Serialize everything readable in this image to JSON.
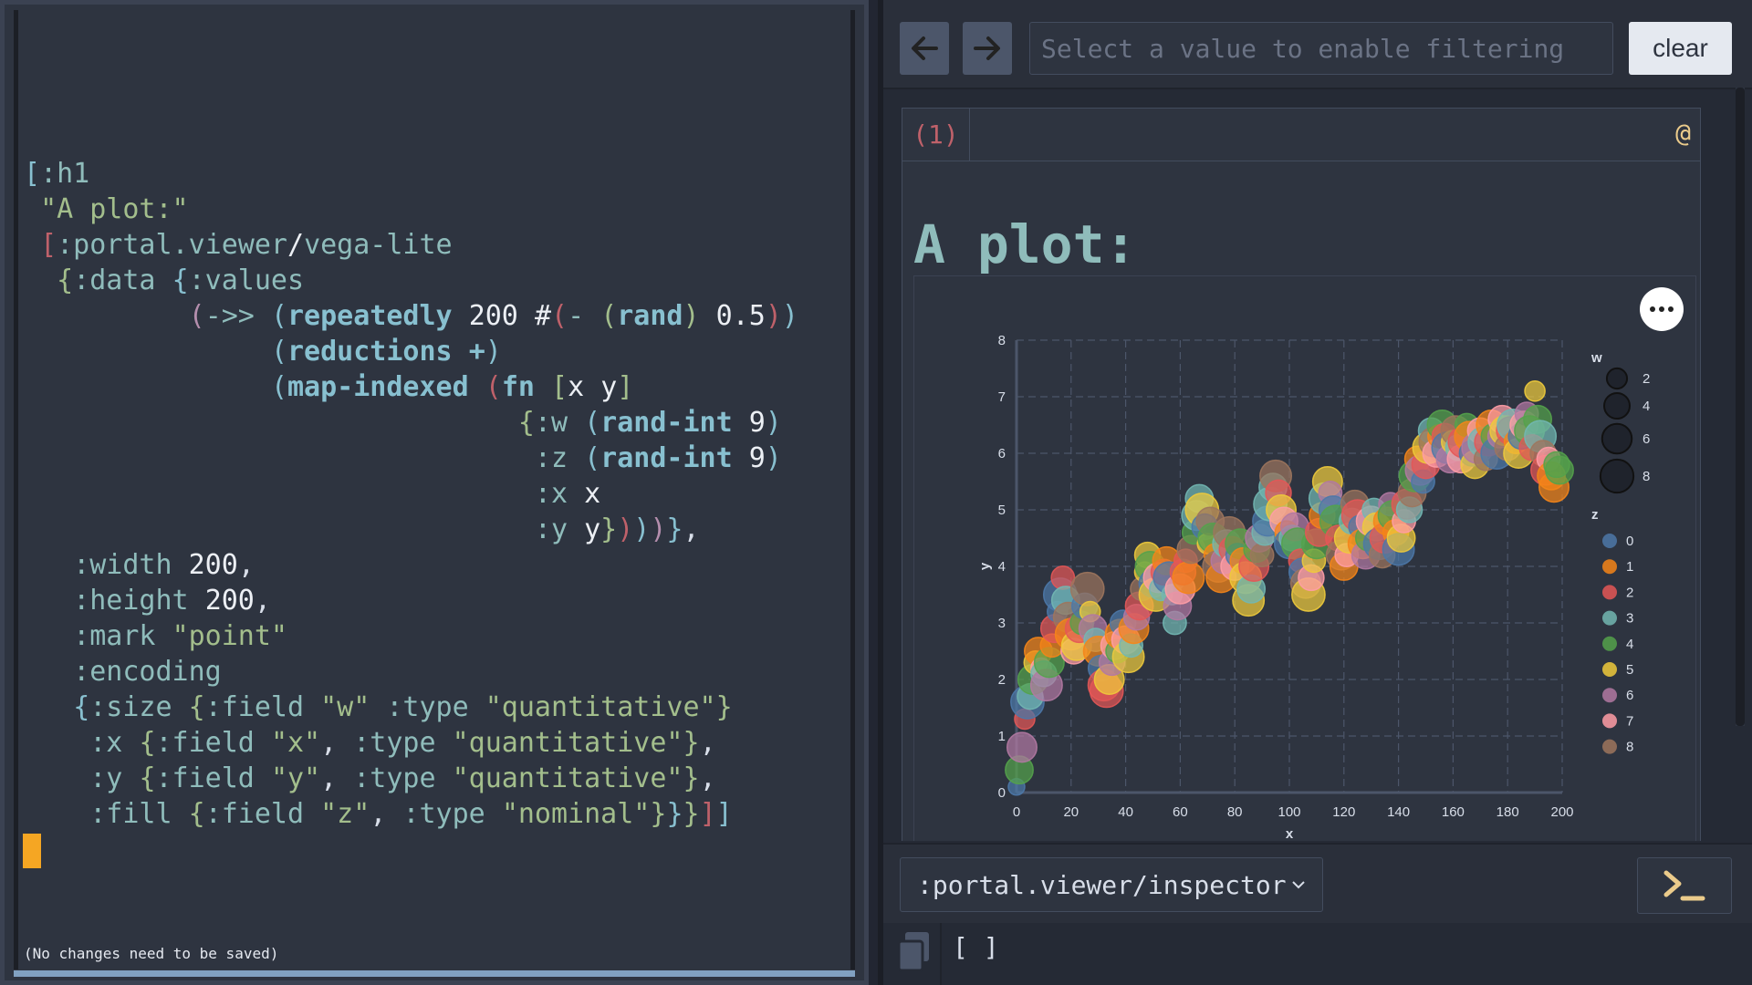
{
  "editor": {
    "status_message": "(No changes need to be saved)"
  },
  "toolbar": {
    "back_icon": "arrow-left-icon",
    "forward_icon": "arrow-right-icon",
    "filter_placeholder": "Select a value to enable filtering",
    "clear_label": "clear"
  },
  "card": {
    "index": "(1)",
    "at_symbol": "@",
    "title": "A plot:"
  },
  "bottom": {
    "viewer_selected": ":portal.viewer/inspector",
    "viewer_options": [
      ":portal.viewer/inspector"
    ],
    "terminal_icon": "terminal-prompt-icon",
    "copy_icon": "copy-icon",
    "status_value": "[ ]"
  },
  "colors": {
    "accent": "#f5a623",
    "z_palette": [
      "#4c78a8",
      "#f58518",
      "#e45756",
      "#72b7b2",
      "#54a24b",
      "#eeca3b",
      "#b279a2",
      "#ff9da6",
      "#9d755d"
    ]
  },
  "chart_data": {
    "type": "scatter",
    "title": "",
    "xlabel": "x",
    "ylabel": "y",
    "xlim": [
      0,
      200
    ],
    "ylim": [
      0,
      8
    ],
    "x_ticks": [
      0,
      20,
      40,
      60,
      80,
      100,
      120,
      140,
      160,
      180,
      200
    ],
    "y_ticks": [
      0,
      1,
      2,
      3,
      4,
      5,
      6,
      7,
      8
    ],
    "grid": true,
    "legend_position": "right",
    "size_legend": {
      "title": "w",
      "values": [
        2,
        4,
        6,
        8
      ]
    },
    "color_legend": {
      "title": "z",
      "values": [
        "0",
        "1",
        "2",
        "3",
        "4",
        "5",
        "6",
        "7",
        "8"
      ]
    },
    "points": [
      {
        "x": 0,
        "y": 0.1,
        "w": 1,
        "z": 0
      },
      {
        "x": 1,
        "y": 0.4,
        "w": 5,
        "z": 4
      },
      {
        "x": 2,
        "y": 0.8,
        "w": 6,
        "z": 6
      },
      {
        "x": 3,
        "y": 1.3,
        "w": 2,
        "z": 2
      },
      {
        "x": 4,
        "y": 1.6,
        "w": 8,
        "z": 0
      },
      {
        "x": 5,
        "y": 1.7,
        "w": 4,
        "z": 3
      },
      {
        "x": 6,
        "y": 2.0,
        "w": 6,
        "z": 4
      },
      {
        "x": 7,
        "y": 2.3,
        "w": 3,
        "z": 5
      },
      {
        "x": 8,
        "y": 2.5,
        "w": 5,
        "z": 1
      },
      {
        "x": 9,
        "y": 2.2,
        "w": 2,
        "z": 7
      },
      {
        "x": 10,
        "y": 2.1,
        "w": 4,
        "z": 3
      },
      {
        "x": 11,
        "y": 1.9,
        "w": 7,
        "z": 6
      },
      {
        "x": 12,
        "y": 2.3,
        "w": 6,
        "z": 4
      },
      {
        "x": 13,
        "y": 2.6,
        "w": 3,
        "z": 1
      },
      {
        "x": 14,
        "y": 2.9,
        "w": 5,
        "z": 2
      },
      {
        "x": 15,
        "y": 3.2,
        "w": 2,
        "z": 0
      },
      {
        "x": 16,
        "y": 3.5,
        "w": 8,
        "z": 0
      },
      {
        "x": 17,
        "y": 3.8,
        "w": 3,
        "z": 2
      },
      {
        "x": 18,
        "y": 3.4,
        "w": 5,
        "z": 3
      },
      {
        "x": 19,
        "y": 3.1,
        "w": 6,
        "z": 8
      },
      {
        "x": 20,
        "y": 2.8,
        "w": 7,
        "z": 1
      },
      {
        "x": 21,
        "y": 2.5,
        "w": 4,
        "z": 7
      },
      {
        "x": 22,
        "y": 2.6,
        "w": 6,
        "z": 5
      },
      {
        "x": 23,
        "y": 2.9,
        "w": 5,
        "z": 2
      },
      {
        "x": 24,
        "y": 3.0,
        "w": 3,
        "z": 4
      },
      {
        "x": 25,
        "y": 3.3,
        "w": 4,
        "z": 0
      },
      {
        "x": 26,
        "y": 3.6,
        "w": 8,
        "z": 8
      },
      {
        "x": 27,
        "y": 3.2,
        "w": 2,
        "z": 5
      },
      {
        "x": 28,
        "y": 2.9,
        "w": 5,
        "z": 6
      },
      {
        "x": 29,
        "y": 2.7,
        "w": 3,
        "z": 3
      },
      {
        "x": 30,
        "y": 2.5,
        "w": 6,
        "z": 1
      },
      {
        "x": 31,
        "y": 2.2,
        "w": 4,
        "z": 0
      },
      {
        "x": 32,
        "y": 1.9,
        "w": 7,
        "z": 2
      },
      {
        "x": 33,
        "y": 1.8,
        "w": 8,
        "z": 2
      },
      {
        "x": 34,
        "y": 2.0,
        "w": 6,
        "z": 5
      },
      {
        "x": 35,
        "y": 2.3,
        "w": 4,
        "z": 6
      },
      {
        "x": 36,
        "y": 2.6,
        "w": 5,
        "z": 7
      },
      {
        "x": 37,
        "y": 2.5,
        "w": 3,
        "z": 4
      },
      {
        "x": 38,
        "y": 2.8,
        "w": 6,
        "z": 1
      },
      {
        "x": 39,
        "y": 3.0,
        "w": 4,
        "z": 0
      },
      {
        "x": 40,
        "y": 2.7,
        "w": 5,
        "z": 7
      },
      {
        "x": 41,
        "y": 2.4,
        "w": 7,
        "z": 5
      },
      {
        "x": 42,
        "y": 2.6,
        "w": 3,
        "z": 3
      },
      {
        "x": 43,
        "y": 2.9,
        "w": 6,
        "z": 1
      },
      {
        "x": 44,
        "y": 3.1,
        "w": 4,
        "z": 6
      },
      {
        "x": 45,
        "y": 3.3,
        "w": 5,
        "z": 2
      },
      {
        "x": 46,
        "y": 3.6,
        "w": 3,
        "z": 8
      },
      {
        "x": 47,
        "y": 3.9,
        "w": 2,
        "z": 5
      },
      {
        "x": 48,
        "y": 4.2,
        "w": 4,
        "z": 5
      },
      {
        "x": 49,
        "y": 4.0,
        "w": 6,
        "z": 4
      },
      {
        "x": 50,
        "y": 3.7,
        "w": 5,
        "z": 0
      },
      {
        "x": 51,
        "y": 3.5,
        "w": 8,
        "z": 5
      },
      {
        "x": 52,
        "y": 3.8,
        "w": 6,
        "z": 7
      },
      {
        "x": 53,
        "y": 3.6,
        "w": 3,
        "z": 3
      },
      {
        "x": 54,
        "y": 3.9,
        "w": 4,
        "z": 2
      },
      {
        "x": 55,
        "y": 4.1,
        "w": 5,
        "z": 1
      },
      {
        "x": 56,
        "y": 3.8,
        "w": 7,
        "z": 0
      },
      {
        "x": 57,
        "y": 3.5,
        "w": 2,
        "z": 3
      },
      {
        "x": 58,
        "y": 3.0,
        "w": 3,
        "z": 3
      },
      {
        "x": 59,
        "y": 3.3,
        "w": 5,
        "z": 6
      },
      {
        "x": 60,
        "y": 3.6,
        "w": 6,
        "z": 7
      },
      {
        "x": 61,
        "y": 3.9,
        "w": 4,
        "z": 2
      },
      {
        "x": 62,
        "y": 4.1,
        "w": 3,
        "z": 2
      },
      {
        "x": 63,
        "y": 3.8,
        "w": 7,
        "z": 1
      },
      {
        "x": 64,
        "y": 4.3,
        "w": 5,
        "z": 8
      },
      {
        "x": 65,
        "y": 4.6,
        "w": 3,
        "z": 4
      },
      {
        "x": 66,
        "y": 4.9,
        "w": 6,
        "z": 3
      },
      {
        "x": 67,
        "y": 5.2,
        "w": 5,
        "z": 3
      },
      {
        "x": 68,
        "y": 5.0,
        "w": 8,
        "z": 5
      },
      {
        "x": 69,
        "y": 4.7,
        "w": 4,
        "z": 0
      },
      {
        "x": 70,
        "y": 4.4,
        "w": 2,
        "z": 5
      },
      {
        "x": 71,
        "y": 4.8,
        "w": 5,
        "z": 8
      },
      {
        "x": 72,
        "y": 4.5,
        "w": 6,
        "z": 4
      },
      {
        "x": 73,
        "y": 4.2,
        "w": 3,
        "z": 1
      },
      {
        "x": 74,
        "y": 4.0,
        "w": 7,
        "z": 8
      },
      {
        "x": 75,
        "y": 3.8,
        "w": 6,
        "z": 1
      },
      {
        "x": 76,
        "y": 4.1,
        "w": 4,
        "z": 6
      },
      {
        "x": 77,
        "y": 4.4,
        "w": 5,
        "z": 3
      },
      {
        "x": 78,
        "y": 4.6,
        "w": 7,
        "z": 8
      },
      {
        "x": 79,
        "y": 4.3,
        "w": 4,
        "z": 2
      },
      {
        "x": 80,
        "y": 4.0,
        "w": 5,
        "z": 7
      },
      {
        "x": 81,
        "y": 4.2,
        "w": 3,
        "z": 0
      },
      {
        "x": 82,
        "y": 4.4,
        "w": 6,
        "z": 4
      },
      {
        "x": 83,
        "y": 4.1,
        "w": 4,
        "z": 1
      },
      {
        "x": 84,
        "y": 3.8,
        "w": 7,
        "z": 5
      },
      {
        "x": 85,
        "y": 3.4,
        "w": 7,
        "z": 5
      },
      {
        "x": 86,
        "y": 3.6,
        "w": 5,
        "z": 3
      },
      {
        "x": 87,
        "y": 4.0,
        "w": 6,
        "z": 2
      },
      {
        "x": 88,
        "y": 4.3,
        "w": 4,
        "z": 4
      },
      {
        "x": 89,
        "y": 4.5,
        "w": 5,
        "z": 6
      },
      {
        "x": 90,
        "y": 4.2,
        "w": 3,
        "z": 8
      },
      {
        "x": 91,
        "y": 4.6,
        "w": 4,
        "z": 3
      },
      {
        "x": 92,
        "y": 4.8,
        "w": 6,
        "z": 0
      },
      {
        "x": 93,
        "y": 5.1,
        "w": 8,
        "z": 3
      },
      {
        "x": 94,
        "y": 5.4,
        "w": 5,
        "z": 3
      },
      {
        "x": 95,
        "y": 5.6,
        "w": 7,
        "z": 8
      },
      {
        "x": 96,
        "y": 5.3,
        "w": 4,
        "z": 2
      },
      {
        "x": 97,
        "y": 5.0,
        "w": 6,
        "z": 5
      },
      {
        "x": 98,
        "y": 4.8,
        "w": 5,
        "z": 7
      },
      {
        "x": 99,
        "y": 4.6,
        "w": 3,
        "z": 1
      },
      {
        "x": 100,
        "y": 4.4,
        "w": 6,
        "z": 0
      },
      {
        "x": 101,
        "y": 4.5,
        "w": 4,
        "z": 3
      },
      {
        "x": 102,
        "y": 4.7,
        "w": 5,
        "z": 6
      },
      {
        "x": 103,
        "y": 4.4,
        "w": 7,
        "z": 4
      },
      {
        "x": 104,
        "y": 4.1,
        "w": 3,
        "z": 2
      },
      {
        "x": 105,
        "y": 3.9,
        "w": 5,
        "z": 0
      },
      {
        "x": 106,
        "y": 3.7,
        "w": 6,
        "z": 8
      },
      {
        "x": 107,
        "y": 3.5,
        "w": 8,
        "z": 5
      },
      {
        "x": 108,
        "y": 3.8,
        "w": 4,
        "z": 7
      },
      {
        "x": 109,
        "y": 4.1,
        "w": 3,
        "z": 5
      },
      {
        "x": 110,
        "y": 4.4,
        "w": 6,
        "z": 4
      },
      {
        "x": 111,
        "y": 4.6,
        "w": 5,
        "z": 2
      },
      {
        "x": 112,
        "y": 4.9,
        "w": 4,
        "z": 1
      },
      {
        "x": 113,
        "y": 5.2,
        "w": 7,
        "z": 3
      },
      {
        "x": 114,
        "y": 5.5,
        "w": 6,
        "z": 5
      },
      {
        "x": 115,
        "y": 5.3,
        "w": 3,
        "z": 6
      },
      {
        "x": 116,
        "y": 5.0,
        "w": 5,
        "z": 0
      },
      {
        "x": 117,
        "y": 4.8,
        "w": 7,
        "z": 4
      },
      {
        "x": 118,
        "y": 4.5,
        "w": 4,
        "z": 2
      },
      {
        "x": 119,
        "y": 4.2,
        "w": 6,
        "z": 8
      },
      {
        "x": 120,
        "y": 4.0,
        "w": 5,
        "z": 1
      },
      {
        "x": 121,
        "y": 4.2,
        "w": 3,
        "z": 7
      },
      {
        "x": 122,
        "y": 4.5,
        "w": 6,
        "z": 5
      },
      {
        "x": 123,
        "y": 4.8,
        "w": 4,
        "z": 3
      },
      {
        "x": 124,
        "y": 5.1,
        "w": 5,
        "z": 8
      },
      {
        "x": 125,
        "y": 4.9,
        "w": 7,
        "z": 2
      },
      {
        "x": 126,
        "y": 4.7,
        "w": 3,
        "z": 0
      },
      {
        "x": 127,
        "y": 4.4,
        "w": 6,
        "z": 1
      },
      {
        "x": 128,
        "y": 4.2,
        "w": 5,
        "z": 6
      },
      {
        "x": 129,
        "y": 4.5,
        "w": 4,
        "z": 4
      },
      {
        "x": 130,
        "y": 4.8,
        "w": 6,
        "z": 7
      },
      {
        "x": 131,
        "y": 5.0,
        "w": 3,
        "z": 3
      },
      {
        "x": 132,
        "y": 4.7,
        "w": 5,
        "z": 5
      },
      {
        "x": 133,
        "y": 4.4,
        "w": 7,
        "z": 0
      },
      {
        "x": 134,
        "y": 4.2,
        "w": 4,
        "z": 8
      },
      {
        "x": 135,
        "y": 4.5,
        "w": 6,
        "z": 2
      },
      {
        "x": 136,
        "y": 4.8,
        "w": 5,
        "z": 1
      },
      {
        "x": 137,
        "y": 5.1,
        "w": 3,
        "z": 6
      },
      {
        "x": 138,
        "y": 4.9,
        "w": 6,
        "z": 4
      },
      {
        "x": 139,
        "y": 4.6,
        "w": 4,
        "z": 1
      },
      {
        "x": 140,
        "y": 4.3,
        "w": 7,
        "z": 0
      },
      {
        "x": 141,
        "y": 4.5,
        "w": 5,
        "z": 5
      },
      {
        "x": 142,
        "y": 4.8,
        "w": 3,
        "z": 7
      },
      {
        "x": 143,
        "y": 5.1,
        "w": 6,
        "z": 2
      },
      {
        "x": 144,
        "y": 5.0,
        "w": 4,
        "z": 3
      },
      {
        "x": 145,
        "y": 5.3,
        "w": 5,
        "z": 8
      },
      {
        "x": 146,
        "y": 5.6,
        "w": 7,
        "z": 4
      },
      {
        "x": 147,
        "y": 5.9,
        "w": 4,
        "z": 1
      },
      {
        "x": 148,
        "y": 5.7,
        "w": 6,
        "z": 6
      },
      {
        "x": 149,
        "y": 5.5,
        "w": 3,
        "z": 0
      },
      {
        "x": 150,
        "y": 5.8,
        "w": 5,
        "z": 2
      },
      {
        "x": 151,
        "y": 6.1,
        "w": 7,
        "z": 5
      },
      {
        "x": 152,
        "y": 6.4,
        "w": 4,
        "z": 3
      },
      {
        "x": 153,
        "y": 6.2,
        "w": 6,
        "z": 8
      },
      {
        "x": 154,
        "y": 6.0,
        "w": 5,
        "z": 7
      },
      {
        "x": 155,
        "y": 6.3,
        "w": 3,
        "z": 1
      },
      {
        "x": 156,
        "y": 6.5,
        "w": 6,
        "z": 4
      },
      {
        "x": 157,
        "y": 6.3,
        "w": 4,
        "z": 2
      },
      {
        "x": 158,
        "y": 6.1,
        "w": 7,
        "z": 0
      },
      {
        "x": 159,
        "y": 5.9,
        "w": 5,
        "z": 6
      },
      {
        "x": 160,
        "y": 6.2,
        "w": 3,
        "z": 5
      },
      {
        "x": 161,
        "y": 6.4,
        "w": 6,
        "z": 8
      },
      {
        "x": 162,
        "y": 6.1,
        "w": 4,
        "z": 3
      },
      {
        "x": 163,
        "y": 5.9,
        "w": 5,
        "z": 7
      },
      {
        "x": 164,
        "y": 6.2,
        "w": 7,
        "z": 2
      },
      {
        "x": 165,
        "y": 6.5,
        "w": 3,
        "z": 4
      },
      {
        "x": 166,
        "y": 6.3,
        "w": 6,
        "z": 1
      },
      {
        "x": 167,
        "y": 6.0,
        "w": 4,
        "z": 0
      },
      {
        "x": 168,
        "y": 5.8,
        "w": 5,
        "z": 5
      },
      {
        "x": 169,
        "y": 6.1,
        "w": 7,
        "z": 6
      },
      {
        "x": 170,
        "y": 6.4,
        "w": 4,
        "z": 7
      },
      {
        "x": 171,
        "y": 6.2,
        "w": 6,
        "z": 3
      },
      {
        "x": 172,
        "y": 5.9,
        "w": 3,
        "z": 8
      },
      {
        "x": 173,
        "y": 6.2,
        "w": 5,
        "z": 2
      },
      {
        "x": 174,
        "y": 6.5,
        "w": 6,
        "z": 1
      },
      {
        "x": 175,
        "y": 6.3,
        "w": 4,
        "z": 4
      },
      {
        "x": 176,
        "y": 6.0,
        "w": 7,
        "z": 0
      },
      {
        "x": 177,
        "y": 6.3,
        "w": 3,
        "z": 6
      },
      {
        "x": 178,
        "y": 6.6,
        "w": 5,
        "z": 7
      },
      {
        "x": 179,
        "y": 6.4,
        "w": 6,
        "z": 5
      },
      {
        "x": 180,
        "y": 6.1,
        "w": 4,
        "z": 8
      },
      {
        "x": 181,
        "y": 6.4,
        "w": 5,
        "z": 2
      },
      {
        "x": 182,
        "y": 6.5,
        "w": 7,
        "z": 3
      },
      {
        "x": 183,
        "y": 6.2,
        "w": 3,
        "z": 1
      },
      {
        "x": 184,
        "y": 6.0,
        "w": 6,
        "z": 5
      },
      {
        "x": 185,
        "y": 6.3,
        "w": 4,
        "z": 0
      },
      {
        "x": 186,
        "y": 6.5,
        "w": 5,
        "z": 7
      },
      {
        "x": 187,
        "y": 6.7,
        "w": 3,
        "z": 6
      },
      {
        "x": 188,
        "y": 6.4,
        "w": 6,
        "z": 4
      },
      {
        "x": 189,
        "y": 6.1,
        "w": 4,
        "z": 2
      },
      {
        "x": 190,
        "y": 7.1,
        "w": 2,
        "z": 5
      },
      {
        "x": 191,
        "y": 6.6,
        "w": 5,
        "z": 4
      },
      {
        "x": 192,
        "y": 6.3,
        "w": 7,
        "z": 3
      },
      {
        "x": 193,
        "y": 6.0,
        "w": 4,
        "z": 8
      },
      {
        "x": 194,
        "y": 5.7,
        "w": 6,
        "z": 2
      },
      {
        "x": 195,
        "y": 5.9,
        "w": 3,
        "z": 7
      },
      {
        "x": 196,
        "y": 5.6,
        "w": 5,
        "z": 1
      },
      {
        "x": 197,
        "y": 5.4,
        "w": 6,
        "z": 1
      },
      {
        "x": 198,
        "y": 5.8,
        "w": 4,
        "z": 4
      },
      {
        "x": 199,
        "y": 5.7,
        "w": 5,
        "z": 4
      }
    ]
  }
}
